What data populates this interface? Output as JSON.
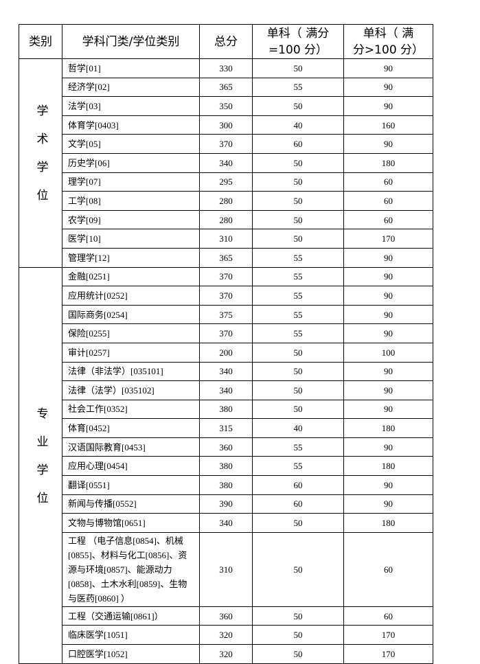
{
  "table": {
    "headers": [
      "类别",
      "学科门类/学位类别",
      "总分",
      "单科（ 满分\n=100 分）",
      "单科（ 满\n分>100 分）"
    ],
    "groups": [
      {
        "label": "学术学位",
        "rows": [
          [
            "哲学[01]",
            330,
            50,
            90
          ],
          [
            "经济学[02]",
            365,
            55,
            90
          ],
          [
            "法学[03]",
            350,
            50,
            90
          ],
          [
            "体育学[0403]",
            300,
            40,
            160
          ],
          [
            "文学[05]",
            370,
            60,
            90
          ],
          [
            "历史学[06]",
            340,
            50,
            180
          ],
          [
            "理学[07]",
            295,
            50,
            60
          ],
          [
            "工学[08]",
            280,
            50,
            60
          ],
          [
            "农学[09]",
            280,
            50,
            60
          ],
          [
            "医学[10]",
            310,
            50,
            170
          ],
          [
            "管理学[12]",
            365,
            55,
            90
          ]
        ]
      },
      {
        "label": "专业学位",
        "rows": [
          [
            "金融[0251]",
            370,
            55,
            90
          ],
          [
            "应用统计[0252]",
            370,
            55,
            90
          ],
          [
            "国际商务[0254]",
            375,
            55,
            90
          ],
          [
            "保险[0255]",
            370,
            55,
            90
          ],
          [
            "审计[0257]",
            200,
            50,
            100
          ],
          [
            "法律（非法学）[035101]",
            340,
            50,
            90
          ],
          [
            "法律（法学）[035102]",
            340,
            50,
            90
          ],
          [
            "社会工作[0352]",
            380,
            50,
            90
          ],
          [
            "体育[0452]",
            315,
            40,
            180
          ],
          [
            "汉语国际教育[0453]",
            360,
            55,
            90
          ],
          [
            "应用心理[0454]",
            380,
            55,
            180
          ],
          [
            "翻译[0551]",
            380,
            60,
            90
          ],
          [
            "新闻与传播[0552]",
            390,
            60,
            90
          ],
          [
            "文物与博物馆[0651]",
            340,
            50,
            180
          ],
          [
            "工程 （电子信息[0854]、机械[0855]、材料与化工[0856]、资源与环境[0857]、能源动力[0858]、土木水利[0859]、生物与医药[0860] ）",
            310,
            50,
            60
          ],
          [
            "工程（交通运输[0861]）",
            360,
            50,
            60
          ],
          [
            "临床医学[1051]",
            320,
            50,
            170
          ],
          [
            "口腔医学[1052]",
            320,
            50,
            170
          ]
        ]
      }
    ]
  }
}
